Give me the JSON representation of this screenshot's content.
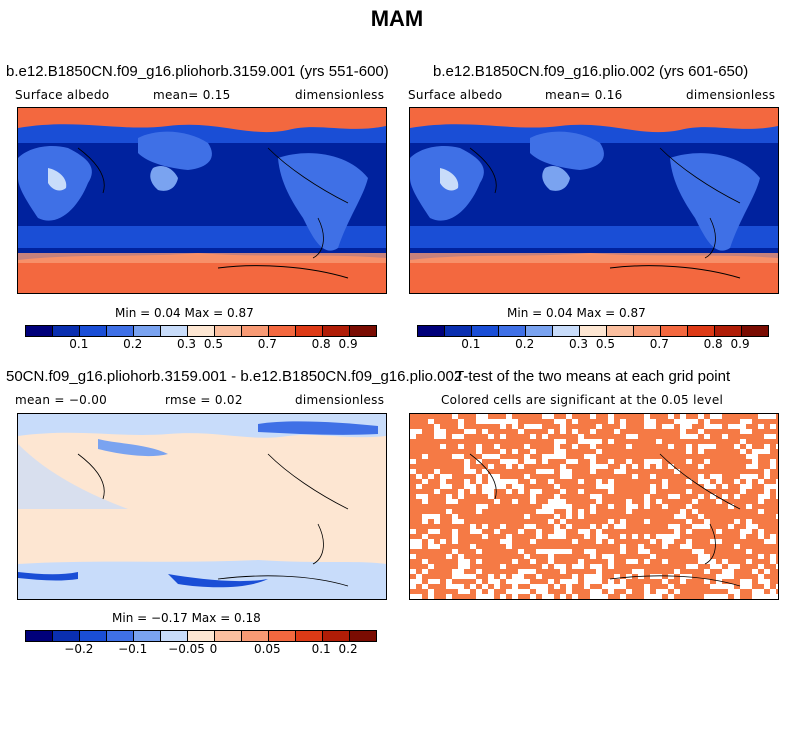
{
  "title": "MAM",
  "panels": [
    {
      "title": "b.e12.B1850CN.f09_g16.pliohorb.3159.001 (yrs 551-600)",
      "left": "Surface albedo",
      "mid": "mean=    0.15",
      "right": "dimensionless",
      "stats": "Min =   0.04 Max =   0.87"
    },
    {
      "title": "b.e12.B1850CN.f09_g16.plio.002 (yrs 601-650)",
      "left": "Surface albedo",
      "mid": "mean=    0.16",
      "right": "dimensionless",
      "stats": "Min =   0.04 Max =   0.87"
    },
    {
      "title": "50CN.f09_g16.pliohorb.3159.001 - b.e12.B1850CN.f09_g16.plio.002",
      "left": "mean =  −0.00",
      "mid": "rmse =    0.02",
      "right": "dimensionless",
      "stats": "Min =  −0.17 Max =   0.18"
    },
    {
      "title": "T-test of the two means at each grid point",
      "subtitle": "Colored cells are significant at the 0.05 level"
    }
  ],
  "colorbar_abs": {
    "colors": [
      "#00007a",
      "#0a2fb0",
      "#1a4ed6",
      "#3f70e6",
      "#7aa3f0",
      "#c8dcfa",
      "#fde6d2",
      "#fbbf9f",
      "#f89a74",
      "#f3683f",
      "#dd3a16",
      "#b01d07",
      "#7a0c02"
    ],
    "labels": [
      "0.1",
      "0.2",
      "0.3",
      "0.5",
      "0.7",
      "0.8",
      "0.9"
    ]
  },
  "colorbar_diff": {
    "colors": [
      "#00007a",
      "#0a2fb0",
      "#1a4ed6",
      "#3f70e6",
      "#7aa3f0",
      "#c8dcfa",
      "#fde6d2",
      "#fbbf9f",
      "#f89a74",
      "#f3683f",
      "#dd3a16",
      "#b01d07",
      "#7a0c02"
    ],
    "labels": [
      "−0.2",
      "−0.1",
      "−0.05",
      "0",
      "0.05",
      "0.1",
      "0.2"
    ]
  },
  "ttest_color": "#f57a45"
}
